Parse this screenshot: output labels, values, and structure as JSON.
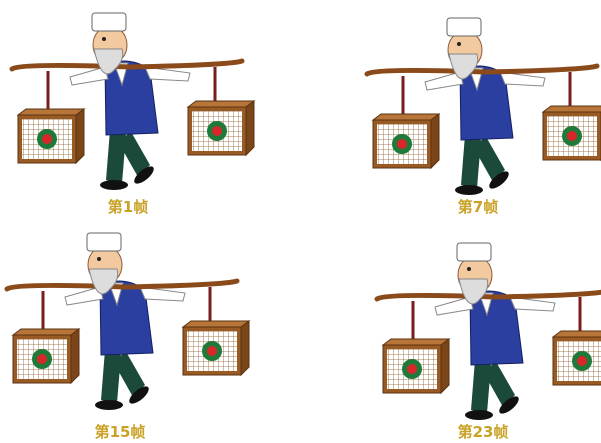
{
  "frames": [
    {
      "label": "第1帧"
    },
    {
      "label": "第7帧"
    },
    {
      "label": "第15帧"
    },
    {
      "label": "第23帧"
    }
  ]
}
